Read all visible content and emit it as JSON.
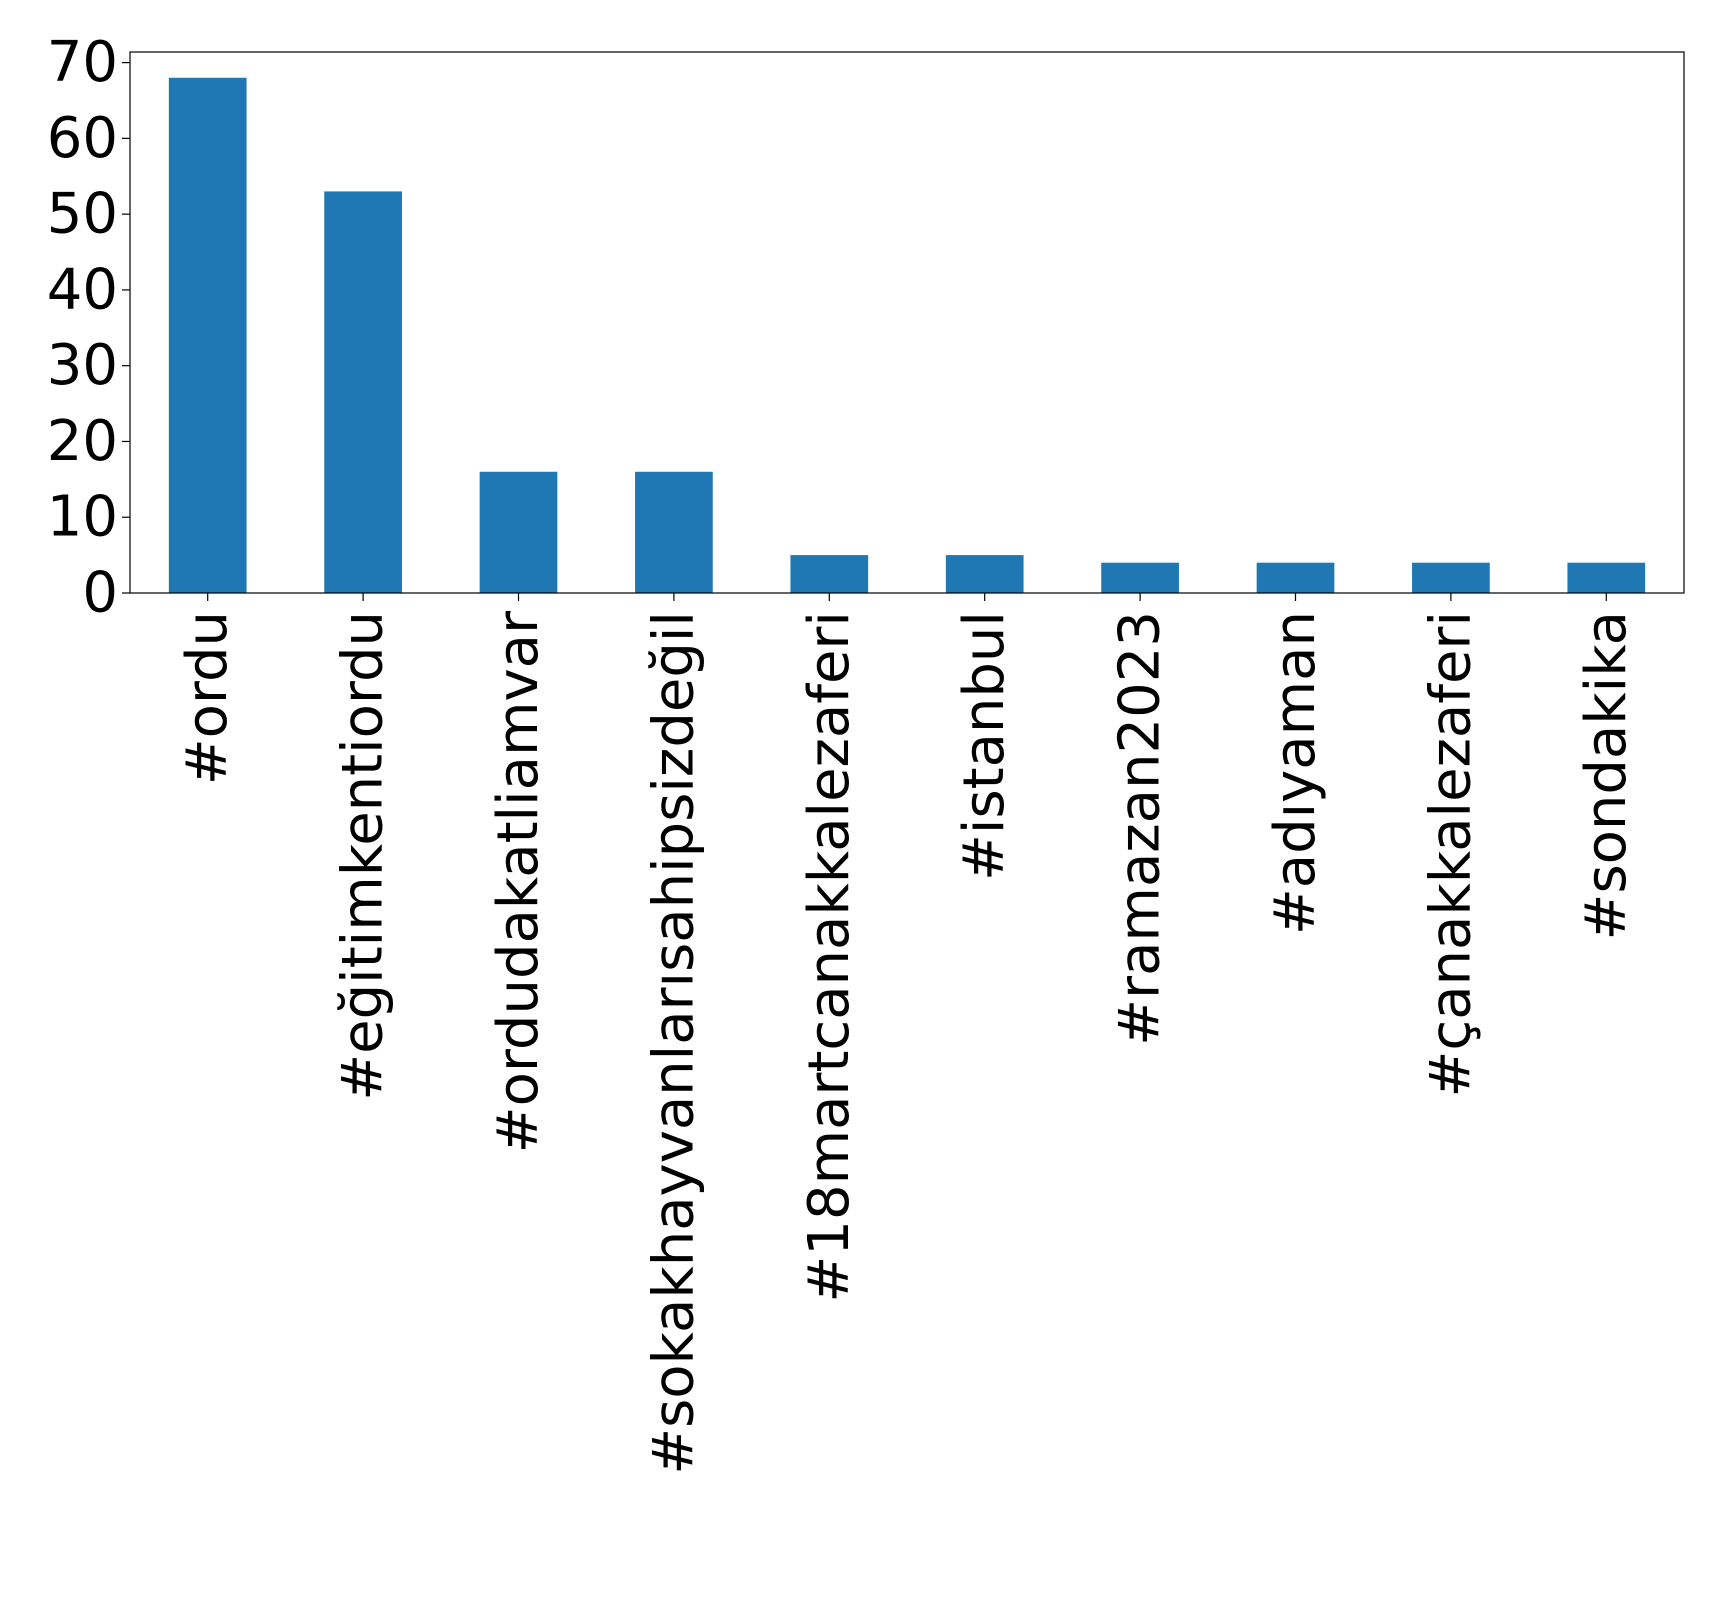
{
  "chart_data": {
    "type": "bar",
    "categories": [
      "#ordu",
      "#eğitimkentiordu",
      "#ordudakatliamvar",
      "#sokakhayvanlarısahipsizdeğil",
      "#18martcanakkalezaferi",
      "#istanbul",
      "#ramazan2023",
      "#adıyaman",
      "#çanakkalezaferi",
      "#sondakika"
    ],
    "values": [
      68,
      53,
      16,
      16,
      5,
      5,
      4,
      4,
      4,
      4
    ],
    "title": "",
    "xlabel": "",
    "ylabel": "",
    "ylim": [
      0,
      71.4
    ],
    "yticks": [
      0,
      10,
      20,
      30,
      40,
      50,
      60,
      70
    ],
    "grid": false,
    "legend": "none",
    "bar_color": "#1f77b4"
  }
}
